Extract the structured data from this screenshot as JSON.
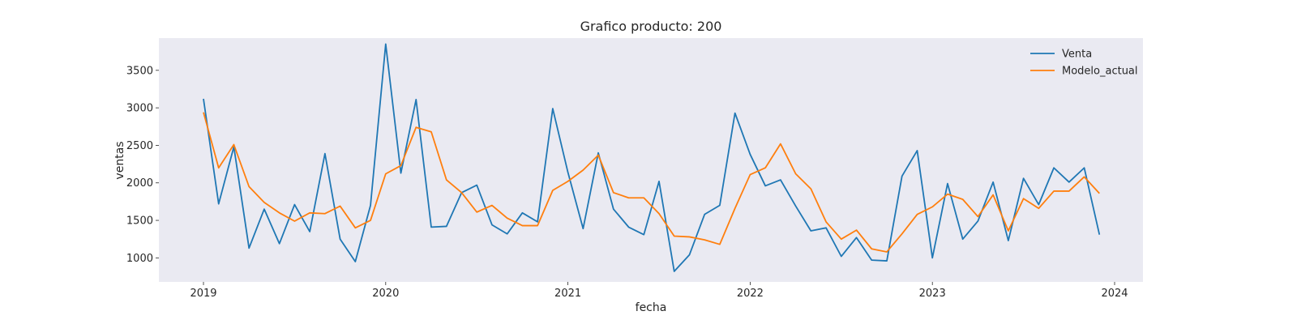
{
  "chart_data": {
    "type": "line",
    "title": "Grafico producto: 200",
    "xlabel": "fecha",
    "ylabel": "ventas",
    "x_start": "2019-01",
    "x_ticks": [
      "2019",
      "2020",
      "2021",
      "2022",
      "2023",
      "2024"
    ],
    "y_ticks": [
      1000,
      1500,
      2000,
      2500,
      3000,
      3500
    ],
    "ylim": [
      680,
      3930
    ],
    "grid": false,
    "legend": "top-right",
    "background_color": "#eaeaf2",
    "series": [
      {
        "name": "Venta",
        "color": "#1f77b4",
        "values": [
          3120,
          1720,
          2480,
          1130,
          1650,
          1190,
          1710,
          1350,
          2390,
          1250,
          950,
          1700,
          3850,
          2130,
          3110,
          1410,
          1420,
          1870,
          1970,
          1440,
          1320,
          1600,
          1480,
          2990,
          2140,
          1390,
          2400,
          1650,
          1410,
          1310,
          2020,
          820,
          1040,
          1580,
          1700,
          2930,
          2380,
          1960,
          2040,
          1690,
          1360,
          1400,
          1020,
          1270,
          970,
          960,
          2090,
          2430,
          1000,
          1990,
          1250,
          1490,
          2010,
          1230,
          2060,
          1710,
          2200,
          2010,
          2200,
          1310
        ]
      },
      {
        "name": "Modelo_actual",
        "color": "#ff7f0e",
        "values": [
          2940,
          2200,
          2510,
          1950,
          1740,
          1600,
          1490,
          1600,
          1590,
          1690,
          1400,
          1500,
          2120,
          2230,
          2740,
          2680,
          2040,
          1870,
          1610,
          1700,
          1530,
          1430,
          1430,
          1900,
          2020,
          2170,
          2370,
          1870,
          1800,
          1800,
          1590,
          1290,
          1280,
          1240,
          1180,
          1660,
          2110,
          2200,
          2520,
          2120,
          1920,
          1480,
          1250,
          1370,
          1120,
          1080,
          1320,
          1580,
          1680,
          1850,
          1780,
          1550,
          1840,
          1360,
          1790,
          1660,
          1890,
          1890,
          2080,
          1860
        ]
      }
    ]
  }
}
